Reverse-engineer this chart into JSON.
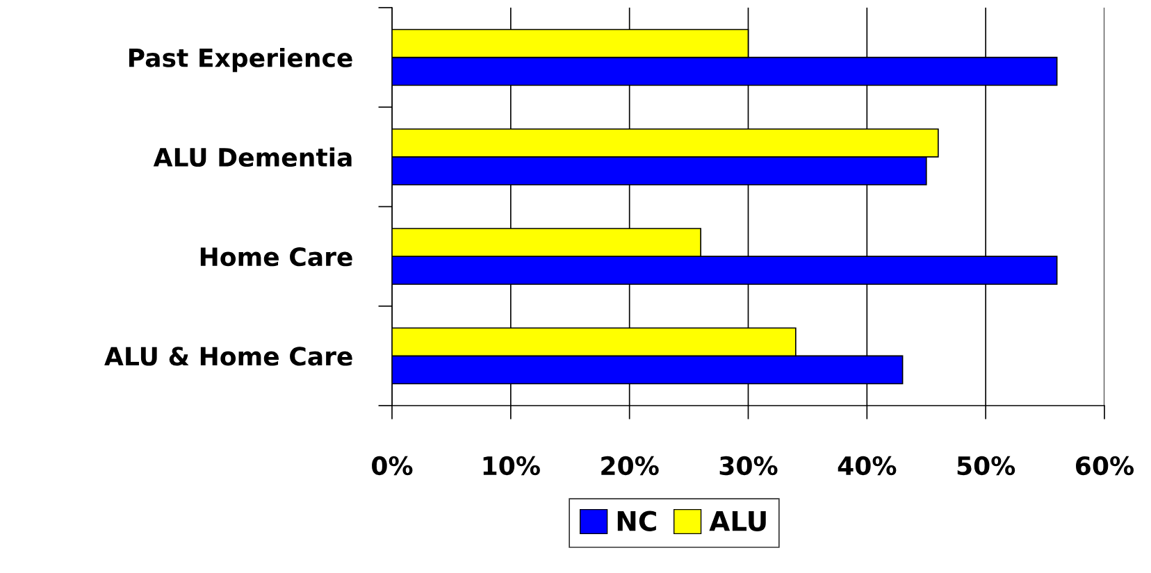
{
  "chart_data": {
    "type": "bar",
    "orientation": "horizontal",
    "categories": [
      "Past Experience",
      "ALU Dementia",
      "Home Care",
      "ALU & Home Care"
    ],
    "series": [
      {
        "name": "NC",
        "color": "#0000ff",
        "values": [
          56,
          45,
          56,
          43
        ]
      },
      {
        "name": "ALU",
        "color": "#ffff00",
        "values": [
          30,
          46,
          26,
          34
        ]
      }
    ],
    "xlim": [
      0,
      60
    ],
    "xticks": [
      {
        "value": 0,
        "label": "0%"
      },
      {
        "value": 10,
        "label": "10%"
      },
      {
        "value": 20,
        "label": "20%"
      },
      {
        "value": 30,
        "label": "30%"
      },
      {
        "value": 40,
        "label": "40%"
      },
      {
        "value": 50,
        "label": "50%"
      },
      {
        "value": 60,
        "label": "60%"
      }
    ],
    "grid": "x",
    "legend": "bottom"
  }
}
